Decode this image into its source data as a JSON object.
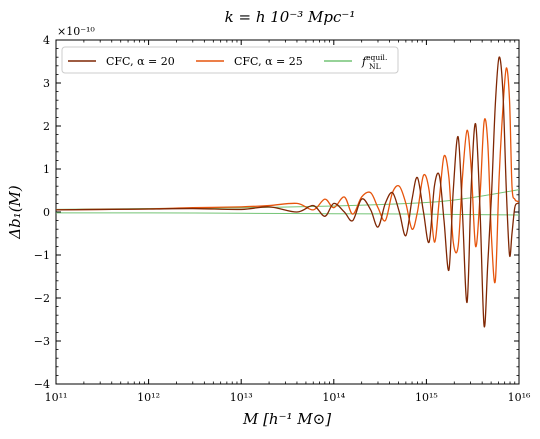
{
  "chart_data": {
    "type": "line",
    "title": "k = h 10⁻³ Mpc⁻¹",
    "xlabel": "M [h⁻¹ M⊙]",
    "ylabel": "Δb₁(M)",
    "y_scale_factor": "×10⁻¹⁰",
    "xscale": "log",
    "xlim": [
      100000000000.0,
      1e+16
    ],
    "ylim": [
      -4,
      4
    ],
    "x_ticks": [
      {
        "value": 100000000000.0,
        "label": "10¹¹"
      },
      {
        "value": 1000000000000.0,
        "label": "10¹²"
      },
      {
        "value": 10000000000000.0,
        "label": "10¹³"
      },
      {
        "value": 100000000000000.0,
        "label": "10¹⁴"
      },
      {
        "value": 1000000000000000.0,
        "label": "10¹⁵"
      },
      {
        "value": 1e+16,
        "label": "10¹⁶"
      }
    ],
    "y_ticks": [
      {
        "value": 4,
        "label": "4"
      },
      {
        "value": 3,
        "label": "3"
      },
      {
        "value": 2,
        "label": "2"
      },
      {
        "value": 1,
        "label": "1"
      },
      {
        "value": 0,
        "label": "0"
      },
      {
        "value": -1,
        "label": "−1"
      },
      {
        "value": -2,
        "label": "−2"
      },
      {
        "value": -3,
        "label": "−3"
      },
      {
        "value": -4,
        "label": "−4"
      }
    ],
    "legend_position": "top-left",
    "grid": false,
    "series": [
      {
        "name": "CFC, α = 20",
        "color": "#7f2704",
        "x": [
          100000000000.0,
          300000000000.0,
          1000000000000.0,
          3000000000000.0,
          10000000000000.0,
          20000000000000.0,
          40000000000000.0,
          60000000000000.0,
          80000000000000.0,
          100000000000000.0,
          130000000000000.0,
          160000000000000.0,
          200000000000000.0,
          250000000000000.0,
          300000000000000.0,
          360000000000000.0,
          430000000000000.0,
          510000000000000.0,
          600000000000000.0,
          700000000000000.0,
          800000000000000.0,
          930000000000000.0,
          1070000000000000.0,
          1220000000000000.0,
          1380000000000000.0,
          1550000000000000.0,
          1750000000000000.0,
          1950000000000000.0,
          2200000000000000.0,
          2450000000000000.0,
          2750000000000000.0,
          3050000000000000.0,
          3400000000000000.0,
          3800000000000000.0,
          4200000000000000.0,
          4600000000000000.0,
          5050000000000000.0,
          5550000000000000.0,
          6100000000000000.0,
          6700000000000000.0,
          7300000000000000.0,
          7900000000000000.0,
          8400000000000000.0,
          9000000000000000.0,
          9600000000000000.0,
          1e+16
        ],
        "y": [
          0.05,
          0.06,
          0.07,
          0.08,
          0.06,
          0.12,
          0.0,
          0.15,
          -0.1,
          0.2,
          0.0,
          -0.2,
          0.3,
          0.05,
          -0.35,
          0.2,
          0.45,
          0.0,
          -0.55,
          0.3,
          0.8,
          0.0,
          -0.7,
          0.6,
          0.85,
          -0.2,
          -1.35,
          0.5,
          1.75,
          0.0,
          -2.1,
          0.6,
          2.05,
          0.0,
          -2.65,
          -1.2,
          0.4,
          2.5,
          3.6,
          2.8,
          0.5,
          -1.0,
          -0.5,
          0.1,
          0.2,
          0.2
        ]
      },
      {
        "name": "CFC, α = 25",
        "color": "#e6550d",
        "x": [
          100000000000.0,
          300000000000.0,
          1000000000000.0,
          3000000000000.0,
          10000000000000.0,
          20000000000000.0,
          40000000000000.0,
          60000000000000.0,
          80000000000000.0,
          100000000000000.0,
          130000000000000.0,
          160000000000000.0,
          200000000000000.0,
          250000000000000.0,
          300000000000000.0,
          360000000000000.0,
          430000000000000.0,
          510000000000000.0,
          600000000000000.0,
          700000000000000.0,
          800000000000000.0,
          930000000000000.0,
          1070000000000000.0,
          1220000000000000.0,
          1380000000000000.0,
          1550000000000000.0,
          1750000000000000.0,
          1950000000000000.0,
          2200000000000000.0,
          2450000000000000.0,
          2750000000000000.0,
          3050000000000000.0,
          3400000000000000.0,
          3800000000000000.0,
          4200000000000000.0,
          4600000000000000.0,
          5050000000000000.0,
          5550000000000000.0,
          6100000000000000.0,
          6700000000000000.0,
          7300000000000000.0,
          7900000000000000.0,
          8400000000000000.0,
          9000000000000000.0,
          9600000000000000.0,
          1e+16
        ],
        "y": [
          0.05,
          0.06,
          0.07,
          0.1,
          0.12,
          0.15,
          0.2,
          0.05,
          0.3,
          0.1,
          0.35,
          -0.05,
          0.35,
          0.45,
          0.1,
          -0.2,
          0.45,
          0.6,
          0.2,
          -0.4,
          0.0,
          0.85,
          0.5,
          -0.7,
          0.3,
          1.3,
          0.8,
          -0.7,
          -0.8,
          0.8,
          1.9,
          1.0,
          -0.8,
          0.4,
          2.1,
          1.6,
          -0.6,
          -1.6,
          0.8,
          2.4,
          3.35,
          2.6,
          0.6,
          0.3,
          0.25,
          0.25
        ]
      },
      {
        "name": "f_NL^equil.",
        "color": "#74c476",
        "x": [
          100000000000.0,
          1000000000000.0,
          10000000000000.0,
          100000000000000.0,
          1000000000000000.0,
          3000000000000000.0,
          1e+16
        ],
        "y": [
          0.06,
          0.08,
          0.1,
          0.14,
          0.22,
          0.33,
          0.52
        ]
      },
      {
        "name": "",
        "color": "#74c476",
        "x": [
          100000000000.0,
          1000000000000.0,
          10000000000000.0,
          100000000000000.0,
          1000000000000000.0,
          1e+16
        ],
        "y": [
          -0.02,
          -0.02,
          -0.03,
          -0.04,
          -0.05,
          -0.07
        ]
      }
    ]
  }
}
